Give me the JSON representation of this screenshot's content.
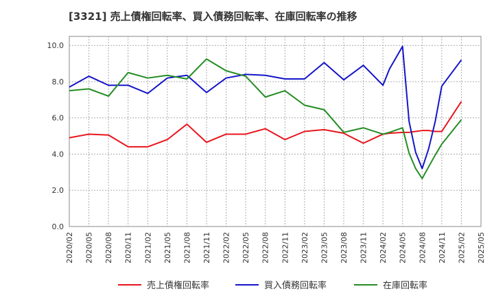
{
  "chart_data": {
    "type": "line",
    "title": "[3321]  売上債権回転率、買入債務回転率、在庫回転率の推移",
    "xlabel": "",
    "ylabel": "",
    "ylim": [
      0,
      10.5
    ],
    "yticks": [
      0.0,
      2.0,
      4.0,
      6.0,
      8.0,
      10.0
    ],
    "ytick_labels": [
      "0.0",
      "2.0",
      "4.0",
      "6.0",
      "8.0",
      "10.0"
    ],
    "grid": true,
    "legend_position": "bottom",
    "x_tick_labels": [
      "2020/02",
      "2020/05",
      "2020/08",
      "2020/11",
      "2021/02",
      "2021/05",
      "2021/08",
      "2021/11",
      "2022/02",
      "2022/05",
      "2022/08",
      "2022/11",
      "2023/02",
      "2023/05",
      "2023/08",
      "2023/11",
      "2024/02",
      "2024/05",
      "2024/08",
      "2024/11",
      "2025/02",
      "2025/05"
    ],
    "x": [
      "2020/02",
      "2020/05",
      "2020/08",
      "2020/11",
      "2021/02",
      "2021/05",
      "2021/08",
      "2021/11",
      "2022/02",
      "2022/05",
      "2022/08",
      "2022/11",
      "2023/02",
      "2023/05",
      "2023/08",
      "2023/11",
      "2024/02",
      "2024/03",
      "2024/05",
      "2024/06",
      "2024/07",
      "2024/08",
      "2024/09",
      "2024/10",
      "2024/11",
      "2025/02"
    ],
    "series": [
      {
        "name": "売上債権回転率",
        "color": "#e8141b",
        "values": [
          4.9,
          5.1,
          5.05,
          4.4,
          4.4,
          4.8,
          5.65,
          4.65,
          5.1,
          5.1,
          5.4,
          4.8,
          5.25,
          5.35,
          5.15,
          4.6,
          5.1,
          5.15,
          5.2,
          5.2,
          5.25,
          5.3,
          5.3,
          5.25,
          5.25,
          6.9
        ]
      },
      {
        "name": "買入債務回転率",
        "color": "#1414c8",
        "values": [
          7.7,
          8.3,
          7.8,
          7.8,
          7.35,
          8.2,
          8.35,
          7.4,
          8.2,
          8.4,
          8.35,
          8.15,
          8.15,
          9.05,
          8.1,
          8.9,
          7.8,
          8.7,
          9.95,
          5.8,
          4.1,
          3.2,
          4.3,
          5.8,
          7.75,
          9.2
        ]
      },
      {
        "name": "在庫回転率",
        "color": "#238c23",
        "values": [
          7.5,
          7.6,
          7.2,
          8.5,
          8.2,
          8.35,
          8.15,
          9.25,
          8.6,
          8.3,
          7.15,
          7.5,
          6.7,
          6.45,
          5.2,
          5.45,
          5.1,
          5.2,
          5.45,
          4.05,
          3.2,
          2.65,
          3.3,
          3.95,
          4.55,
          5.9
        ]
      }
    ]
  }
}
